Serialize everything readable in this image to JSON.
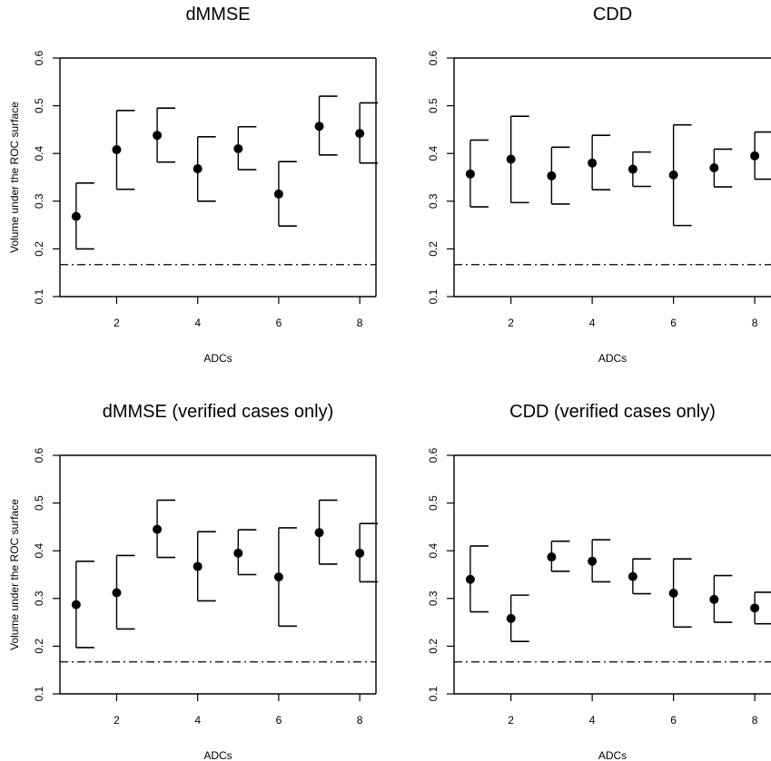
{
  "chart_data": [
    {
      "type": "scatter",
      "title": "dMMSE",
      "xlabel": "ADCs",
      "ylabel": "Volume under the ROC surface",
      "xlim": [
        0.6,
        8.4
      ],
      "ylim": [
        0.1,
        0.6
      ],
      "xticks": [
        "2",
        "4",
        "6",
        "8"
      ],
      "yticks": [
        "0.1",
        "0.2",
        "0.3",
        "0.4",
        "0.5",
        "0.6"
      ],
      "reference_line": 0.167,
      "series": [
        {
          "x": [
            1,
            2,
            3,
            4,
            5,
            6,
            7,
            8
          ],
          "y": [
            0.268,
            0.408,
            0.438,
            0.368,
            0.41,
            0.315,
            0.457,
            0.442
          ],
          "lower": [
            0.2,
            0.325,
            0.382,
            0.3,
            0.366,
            0.248,
            0.397,
            0.38
          ],
          "upper": [
            0.338,
            0.49,
            0.495,
            0.435,
            0.456,
            0.383,
            0.52,
            0.506
          ]
        }
      ]
    },
    {
      "type": "scatter",
      "title": "CDD",
      "xlabel": "ADCs",
      "ylabel": "",
      "xlim": [
        0.6,
        8.4
      ],
      "ylim": [
        0.1,
        0.6
      ],
      "xticks": [
        "2",
        "4",
        "6",
        "8"
      ],
      "yticks": [
        "0.1",
        "0.2",
        "0.3",
        "0.4",
        "0.5",
        "0.6"
      ],
      "reference_line": 0.167,
      "series": [
        {
          "x": [
            1,
            2,
            3,
            4,
            5,
            6,
            7,
            8
          ],
          "y": [
            0.357,
            0.388,
            0.353,
            0.38,
            0.367,
            0.355,
            0.37,
            0.395
          ],
          "lower": [
            0.288,
            0.297,
            0.294,
            0.324,
            0.331,
            0.249,
            0.33,
            0.346
          ],
          "upper": [
            0.428,
            0.478,
            0.413,
            0.438,
            0.403,
            0.46,
            0.409,
            0.445
          ]
        }
      ]
    },
    {
      "type": "scatter",
      "title": "dMMSE (verified cases only)",
      "xlabel": "ADCs",
      "ylabel": "Volume under the ROC surface",
      "xlim": [
        0.6,
        8.4
      ],
      "ylim": [
        0.1,
        0.6
      ],
      "xticks": [
        "2",
        "4",
        "6",
        "8"
      ],
      "yticks": [
        "0.1",
        "0.2",
        "0.3",
        "0.4",
        "0.5",
        "0.6"
      ],
      "reference_line": 0.167,
      "series": [
        {
          "x": [
            1,
            2,
            3,
            4,
            5,
            6,
            7,
            8
          ],
          "y": [
            0.287,
            0.312,
            0.445,
            0.367,
            0.395,
            0.345,
            0.438,
            0.395
          ],
          "lower": [
            0.197,
            0.236,
            0.386,
            0.295,
            0.35,
            0.242,
            0.372,
            0.335
          ],
          "upper": [
            0.378,
            0.39,
            0.506,
            0.44,
            0.444,
            0.448,
            0.506,
            0.457
          ]
        }
      ]
    },
    {
      "type": "scatter",
      "title": "CDD (verified cases only)",
      "xlabel": "ADCs",
      "ylabel": "",
      "xlim": [
        0.6,
        8.4
      ],
      "ylim": [
        0.1,
        0.6
      ],
      "xticks": [
        "2",
        "4",
        "6",
        "8"
      ],
      "yticks": [
        "0.1",
        "0.2",
        "0.3",
        "0.4",
        "0.5",
        "0.6"
      ],
      "reference_line": 0.167,
      "series": [
        {
          "x": [
            1,
            2,
            3,
            4,
            5,
            6,
            7,
            8
          ],
          "y": [
            0.34,
            0.258,
            0.387,
            0.378,
            0.346,
            0.311,
            0.298,
            0.28
          ],
          "lower": [
            0.272,
            0.21,
            0.357,
            0.335,
            0.31,
            0.24,
            0.25,
            0.247
          ],
          "upper": [
            0.41,
            0.307,
            0.42,
            0.423,
            0.383,
            0.383,
            0.348,
            0.313
          ]
        }
      ]
    }
  ]
}
